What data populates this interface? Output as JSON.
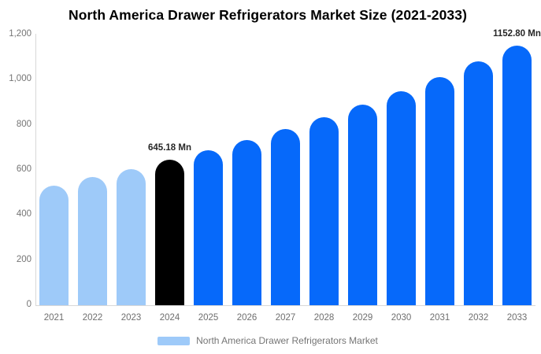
{
  "title": "North America Drawer Refrigerators Market Size (2021-2033)",
  "chart_data": {
    "type": "bar",
    "title": "North America Drawer Refrigerators Market Size (2021-2033)",
    "xlabel": "",
    "ylabel": "",
    "unit": "Mn",
    "categories": [
      "2021",
      "2022",
      "2023",
      "2024",
      "2025",
      "2026",
      "2027",
      "2028",
      "2029",
      "2030",
      "2031",
      "2032",
      "2033"
    ],
    "values": [
      531.7,
      567.1,
      604.9,
      645.18,
      688.2,
      734.0,
      782.8,
      835.0,
      890.6,
      950.0,
      1013.3,
      1080.9,
      1152.8
    ],
    "bar_colors": [
      "#9ECAF9",
      "#9ECAF9",
      "#9ECAF9",
      "#000000",
      "#0669FA",
      "#0669FA",
      "#0669FA",
      "#0669FA",
      "#0669FA",
      "#0669FA",
      "#0669FA",
      "#0669FA",
      "#0669FA"
    ],
    "palette": {
      "historical": "#9ECAF9",
      "base_year": "#000000",
      "forecast": "#0669FA"
    },
    "data_labels": [
      {
        "category": "2024",
        "text": "645.18 Mn"
      },
      {
        "category": "2033",
        "text": "1152.80 Mn"
      }
    ],
    "ylim": [
      0,
      1200
    ],
    "yticks": [
      {
        "value": 0,
        "label": "0"
      },
      {
        "value": 200,
        "label": "200"
      },
      {
        "value": 400,
        "label": "400"
      },
      {
        "value": 600,
        "label": "600"
      },
      {
        "value": 800,
        "label": "800"
      },
      {
        "value": 1000,
        "label": "1,000"
      },
      {
        "value": 1200,
        "label": "1,200"
      }
    ],
    "grid": false,
    "legend": {
      "position": "bottom",
      "label": "North America Drawer Refrigerators Market",
      "swatch_color": "#9ECAF9"
    },
    "axis_line_color": "#d8d8d8",
    "tick_text_color": "#757575",
    "data_label_color": "#262626"
  }
}
